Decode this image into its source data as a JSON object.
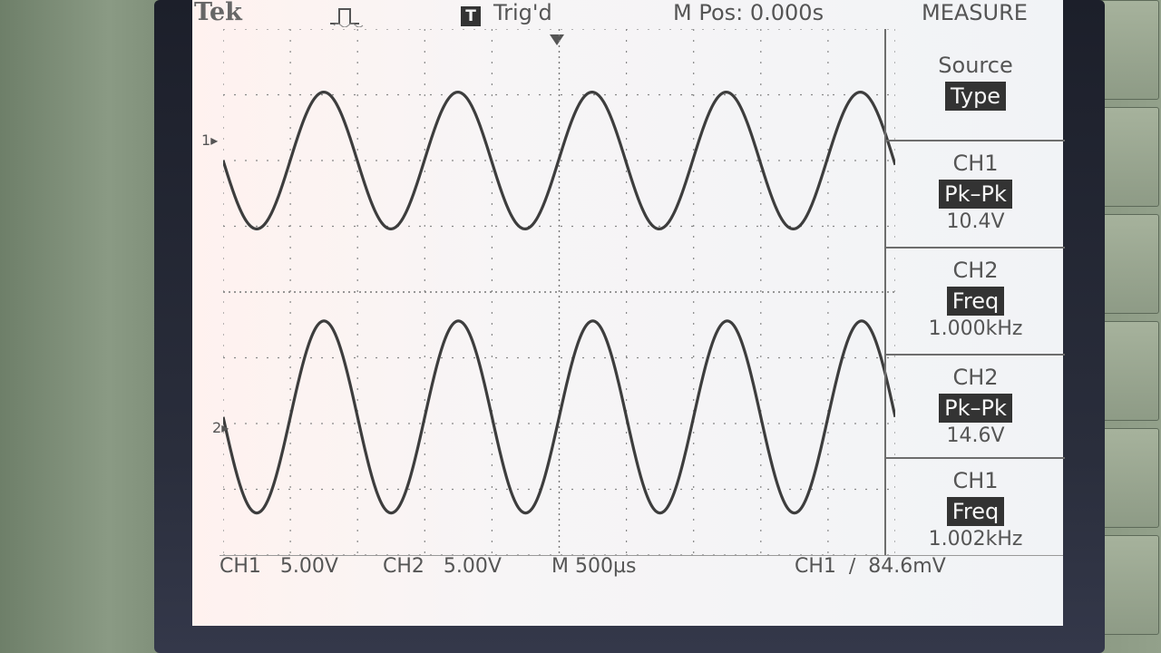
{
  "header": {
    "brand": "Tek",
    "trigger_badge": "T",
    "trigger_state": "Trig'd",
    "position": "M Pos: 0.000s",
    "menu": "MEASURE"
  },
  "channel_markers": {
    "ch1": "1",
    "ch2": "2"
  },
  "measure_menu": [
    {
      "title": "Source",
      "chip": "Type",
      "value": ""
    },
    {
      "title": "CH1",
      "chip": "Pk–Pk",
      "value": "10.4V"
    },
    {
      "title": "CH2",
      "chip": "Freq",
      "value": "1.000kHz"
    },
    {
      "title": "CH2",
      "chip": "Pk–Pk",
      "value": "14.6V"
    },
    {
      "title": "CH1",
      "chip": "Freq",
      "value": "1.002kHz"
    }
  ],
  "status_bar": {
    "ch1_scale": "CH1   5.00V",
    "ch2_scale": "CH2   5.00V",
    "timebase": "M 500µs",
    "trigger": "CH1  ∕  84.6mV"
  },
  "chart_data": {
    "type": "line",
    "title": "",
    "xlabel": "",
    "ylabel": "",
    "grid": true,
    "x_divisions": 10,
    "y_divisions": 8,
    "series": [
      {
        "name": "CH1",
        "waveform": "sine",
        "frequency_khz": 1.002,
        "peak_to_peak_v": 10.4,
        "volts_per_div": 5.0,
        "offset_div": 2.0,
        "phase_deg": 180,
        "color": "#3d3d3d"
      },
      {
        "name": "CH2",
        "waveform": "sine",
        "frequency_khz": 1.0,
        "peak_to_peak_v": 14.6,
        "volts_per_div": 5.0,
        "offset_div": -1.9,
        "phase_deg": 180,
        "color": "#3d3d3d"
      }
    ],
    "time_per_div_us": 500
  }
}
